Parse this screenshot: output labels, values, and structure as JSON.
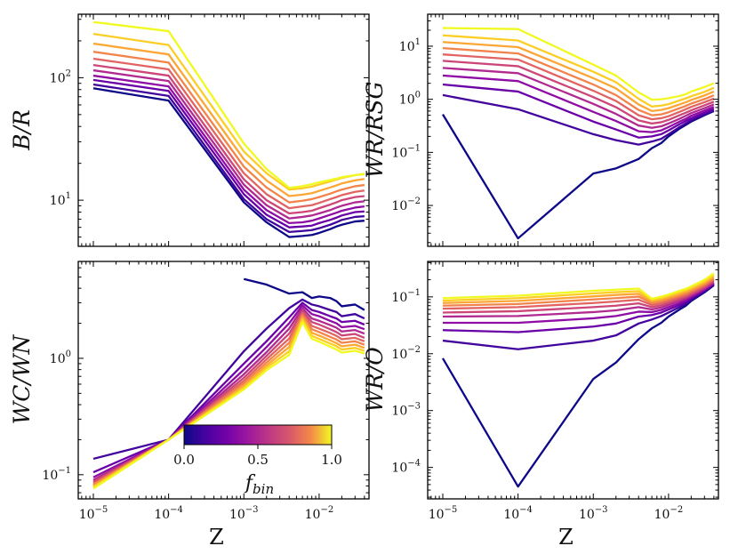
{
  "chart_data": [
    {
      "type": "line",
      "panel": "top-left",
      "ylabel": "B/R",
      "xlabel": "",
      "xscale": "log",
      "yscale": "log",
      "xlim": [
        6.3e-06,
        0.046
      ],
      "ylim": [
        4.2,
        330
      ],
      "x": [
        1e-05,
        0.0001,
        0.001,
        0.002,
        0.004,
        0.006,
        0.008,
        0.01,
        0.014,
        0.017,
        0.02,
        0.03,
        0.04
      ],
      "series": [
        {
          "f_bin": 0.0,
          "values": [
            82,
            65,
            9.6,
            6.6,
            5.0,
            5.1,
            5.2,
            5.4,
            5.8,
            6.1,
            6.3,
            6.7,
            6.8
          ]
        },
        {
          "f_bin": 0.1,
          "values": [
            88,
            71,
            10.2,
            7.0,
            5.5,
            5.6,
            5.7,
            5.9,
            6.3,
            6.6,
            6.9,
            7.3,
            7.4
          ]
        },
        {
          "f_bin": 0.2,
          "values": [
            96,
            78,
            11.2,
            7.6,
            6.0,
            6.1,
            6.2,
            6.5,
            6.9,
            7.2,
            7.5,
            8.0,
            8.1
          ]
        },
        {
          "f_bin": 0.3,
          "values": [
            104,
            85,
            12.2,
            8.3,
            6.5,
            6.6,
            6.8,
            7.1,
            7.6,
            7.9,
            8.2,
            8.7,
            8.9
          ]
        },
        {
          "f_bin": 0.4,
          "values": [
            115,
            94,
            13.4,
            9.1,
            7.1,
            7.3,
            7.5,
            7.8,
            8.3,
            8.7,
            9.0,
            9.6,
            9.8
          ]
        },
        {
          "f_bin": 0.5,
          "values": [
            127,
            104,
            14.8,
            10.0,
            7.8,
            8.0,
            8.2,
            8.6,
            9.2,
            9.6,
            10.0,
            10.6,
            10.8
          ]
        },
        {
          "f_bin": 0.6,
          "values": [
            143,
            117,
            16.6,
            11.2,
            8.6,
            8.9,
            9.1,
            9.5,
            10.2,
            10.6,
            11.0,
            11.7,
            12.0
          ]
        },
        {
          "f_bin": 0.7,
          "values": [
            163,
            133,
            18.8,
            12.7,
            9.6,
            9.9,
            10.2,
            10.6,
            11.3,
            11.8,
            12.2,
            13.0,
            13.3
          ]
        },
        {
          "f_bin": 0.8,
          "values": [
            190,
            155,
            21.6,
            14.5,
            10.8,
            11.1,
            11.4,
            11.9,
            12.7,
            13.2,
            13.7,
            14.5,
            14.9
          ]
        },
        {
          "f_bin": 0.9,
          "values": [
            228,
            185,
            25.0,
            16.6,
            12.2,
            12.5,
            12.9,
            13.4,
            14.2,
            14.7,
            15.2,
            16.0,
            16.4
          ]
        },
        {
          "f_bin": 1.0,
          "values": [
            285,
            240,
            29.0,
            18.0,
            12.6,
            13.0,
            13.5,
            14.0,
            14.6,
            15.0,
            15.4,
            16.0,
            16.3
          ]
        }
      ]
    },
    {
      "type": "line",
      "panel": "top-right",
      "ylabel": "WR/RSG",
      "xlabel": "",
      "xscale": "log",
      "yscale": "log",
      "xlim": [
        6.3e-06,
        0.046
      ],
      "ylim": [
        0.0017,
        40
      ],
      "x": [
        1e-05,
        0.0001,
        0.001,
        0.002,
        0.004,
        0.006,
        0.008,
        0.01,
        0.014,
        0.017,
        0.02,
        0.03,
        0.04
      ],
      "series": [
        {
          "f_bin": 0.0,
          "values": [
            0.52,
            0.0024,
            0.04,
            0.05,
            0.075,
            0.12,
            0.15,
            0.2,
            0.28,
            0.33,
            0.38,
            0.5,
            0.6
          ]
        },
        {
          "f_bin": 0.1,
          "values": [
            1.2,
            0.65,
            0.22,
            0.17,
            0.14,
            0.16,
            0.18,
            0.22,
            0.3,
            0.35,
            0.4,
            0.52,
            0.62
          ]
        },
        {
          "f_bin": 0.2,
          "values": [
            1.9,
            1.4,
            0.38,
            0.27,
            0.19,
            0.2,
            0.22,
            0.26,
            0.34,
            0.39,
            0.44,
            0.56,
            0.66
          ]
        },
        {
          "f_bin": 0.3,
          "values": [
            2.8,
            2.2,
            0.58,
            0.39,
            0.25,
            0.24,
            0.26,
            0.3,
            0.38,
            0.43,
            0.49,
            0.61,
            0.72
          ]
        },
        {
          "f_bin": 0.4,
          "values": [
            3.9,
            3.1,
            0.82,
            0.53,
            0.32,
            0.29,
            0.31,
            0.35,
            0.43,
            0.49,
            0.55,
            0.68,
            0.8
          ]
        },
        {
          "f_bin": 0.5,
          "values": [
            5.3,
            4.2,
            1.1,
            0.71,
            0.4,
            0.35,
            0.37,
            0.41,
            0.5,
            0.56,
            0.62,
            0.77,
            0.9
          ]
        },
        {
          "f_bin": 0.6,
          "values": [
            7.0,
            5.6,
            1.45,
            0.93,
            0.5,
            0.42,
            0.44,
            0.48,
            0.58,
            0.65,
            0.72,
            0.88,
            1.03
          ]
        },
        {
          "f_bin": 0.7,
          "values": [
            9.2,
            7.3,
            1.9,
            1.2,
            0.63,
            0.5,
            0.52,
            0.57,
            0.68,
            0.75,
            0.83,
            1.01,
            1.19
          ]
        },
        {
          "f_bin": 0.8,
          "values": [
            12.0,
            9.6,
            2.5,
            1.6,
            0.8,
            0.6,
            0.63,
            0.68,
            0.8,
            0.88,
            0.97,
            1.18,
            1.4
          ]
        },
        {
          "f_bin": 0.9,
          "values": [
            16.0,
            12.8,
            3.3,
            2.1,
            1.02,
            0.73,
            0.76,
            0.81,
            0.95,
            1.04,
            1.14,
            1.38,
            1.65
          ]
        },
        {
          "f_bin": 1.0,
          "values": [
            22.0,
            21.0,
            4.5,
            2.8,
            1.35,
            0.98,
            1.0,
            1.05,
            1.15,
            1.25,
            1.4,
            1.7,
            2.0
          ]
        }
      ]
    },
    {
      "type": "line",
      "panel": "bottom-left",
      "ylabel": "WC/WN",
      "xlabel": "Z",
      "xscale": "log",
      "yscale": "log",
      "xlim": [
        6.3e-06,
        0.046
      ],
      "ylim": [
        0.062,
        6.8
      ],
      "x": [
        1e-05,
        0.0001,
        0.001,
        0.002,
        0.004,
        0.006,
        0.008,
        0.01,
        0.014,
        0.017,
        0.02,
        0.03,
        0.04
      ],
      "series": [
        {
          "f_bin": 0.0,
          "values": [
            null,
            null,
            4.8,
            4.3,
            3.6,
            3.7,
            3.3,
            3.4,
            3.3,
            3.1,
            2.8,
            2.9,
            2.6
          ]
        },
        {
          "f_bin": 0.1,
          "values": [
            0.137,
            0.2,
            1.15,
            1.8,
            2.7,
            3.2,
            2.9,
            2.8,
            2.6,
            2.5,
            2.3,
            2.4,
            2.2
          ]
        },
        {
          "f_bin": 0.2,
          "values": [
            0.105,
            0.2,
            0.9,
            1.4,
            2.25,
            3.0,
            2.6,
            2.5,
            2.3,
            2.2,
            2.05,
            2.1,
            1.95
          ]
        },
        {
          "f_bin": 0.3,
          "values": [
            0.095,
            0.2,
            0.8,
            1.25,
            2.0,
            2.85,
            2.4,
            2.3,
            2.1,
            2.0,
            1.85,
            1.9,
            1.78
          ]
        },
        {
          "f_bin": 0.4,
          "values": [
            0.09,
            0.2,
            0.73,
            1.13,
            1.8,
            2.7,
            2.2,
            2.1,
            1.93,
            1.83,
            1.7,
            1.75,
            1.63
          ]
        },
        {
          "f_bin": 0.5,
          "values": [
            0.087,
            0.2,
            0.68,
            1.05,
            1.63,
            2.55,
            2.05,
            1.95,
            1.78,
            1.68,
            1.57,
            1.62,
            1.5
          ]
        },
        {
          "f_bin": 0.6,
          "values": [
            0.084,
            0.2,
            0.64,
            0.98,
            1.48,
            2.45,
            1.9,
            1.8,
            1.65,
            1.56,
            1.46,
            1.5,
            1.4
          ]
        },
        {
          "f_bin": 0.7,
          "values": [
            0.082,
            0.2,
            0.61,
            0.92,
            1.36,
            2.35,
            1.78,
            1.68,
            1.53,
            1.45,
            1.36,
            1.4,
            1.31
          ]
        },
        {
          "f_bin": 0.8,
          "values": [
            0.08,
            0.2,
            0.58,
            0.87,
            1.25,
            2.25,
            1.66,
            1.57,
            1.43,
            1.35,
            1.27,
            1.31,
            1.23
          ]
        },
        {
          "f_bin": 0.9,
          "values": [
            0.078,
            0.2,
            0.56,
            0.83,
            1.15,
            2.15,
            1.56,
            1.47,
            1.34,
            1.27,
            1.19,
            1.23,
            1.16
          ]
        },
        {
          "f_bin": 1.0,
          "values": [
            0.076,
            0.2,
            0.54,
            0.79,
            1.07,
            2.05,
            1.47,
            1.39,
            1.26,
            1.19,
            1.12,
            1.16,
            1.1
          ]
        }
      ],
      "colorbar": {
        "label": "f_bin",
        "label_main": "f",
        "label_sub": "bin",
        "ticks": [
          "0.0",
          "0.5",
          "1.0"
        ],
        "colormap": "plasma",
        "range": [
          0,
          1
        ],
        "position": "lower-center"
      }
    },
    {
      "type": "line",
      "panel": "bottom-right",
      "ylabel": "WR/O",
      "xlabel": "Z",
      "xscale": "log",
      "yscale": "log",
      "xlim": [
        6.3e-06,
        0.046
      ],
      "ylim": [
        2.8e-05,
        0.42
      ],
      "x": [
        1e-05,
        0.0001,
        0.001,
        0.002,
        0.004,
        0.006,
        0.008,
        0.01,
        0.014,
        0.017,
        0.02,
        0.03,
        0.04
      ],
      "series": [
        {
          "f_bin": 0.0,
          "values": [
            0.0083,
            4.6e-05,
            0.0036,
            0.007,
            0.018,
            0.028,
            0.035,
            0.045,
            0.06,
            0.07,
            0.085,
            0.12,
            0.16
          ]
        },
        {
          "f_bin": 0.1,
          "values": [
            0.017,
            0.012,
            0.017,
            0.021,
            0.034,
            0.04,
            0.046,
            0.053,
            0.066,
            0.076,
            0.09,
            0.125,
            0.165
          ]
        },
        {
          "f_bin": 0.2,
          "values": [
            0.026,
            0.024,
            0.03,
            0.034,
            0.045,
            0.048,
            0.053,
            0.06,
            0.072,
            0.082,
            0.095,
            0.13,
            0.17
          ]
        },
        {
          "f_bin": 0.3,
          "values": [
            0.035,
            0.035,
            0.042,
            0.046,
            0.055,
            0.054,
            0.059,
            0.066,
            0.078,
            0.088,
            0.1,
            0.135,
            0.175
          ]
        },
        {
          "f_bin": 0.4,
          "values": [
            0.045,
            0.046,
            0.054,
            0.058,
            0.066,
            0.06,
            0.065,
            0.072,
            0.085,
            0.094,
            0.106,
            0.14,
            0.18
          ]
        },
        {
          "f_bin": 0.5,
          "values": [
            0.053,
            0.056,
            0.066,
            0.07,
            0.077,
            0.066,
            0.071,
            0.078,
            0.091,
            0.1,
            0.112,
            0.148,
            0.19
          ]
        },
        {
          "f_bin": 0.6,
          "values": [
            0.062,
            0.066,
            0.078,
            0.083,
            0.089,
            0.072,
            0.077,
            0.085,
            0.098,
            0.107,
            0.119,
            0.156,
            0.2
          ]
        },
        {
          "f_bin": 0.7,
          "values": [
            0.07,
            0.075,
            0.09,
            0.095,
            0.101,
            0.078,
            0.083,
            0.091,
            0.105,
            0.114,
            0.127,
            0.165,
            0.21
          ]
        },
        {
          "f_bin": 0.8,
          "values": [
            0.078,
            0.085,
            0.102,
            0.108,
            0.113,
            0.083,
            0.089,
            0.097,
            0.112,
            0.122,
            0.135,
            0.175,
            0.225
          ]
        },
        {
          "f_bin": 0.9,
          "values": [
            0.086,
            0.095,
            0.115,
            0.121,
            0.126,
            0.088,
            0.095,
            0.104,
            0.12,
            0.13,
            0.144,
            0.185,
            0.24
          ]
        },
        {
          "f_bin": 1.0,
          "values": [
            0.095,
            0.105,
            0.128,
            0.134,
            0.14,
            0.093,
            0.101,
            0.11,
            0.128,
            0.139,
            0.153,
            0.2,
            0.26
          ]
        }
      ]
    }
  ]
}
